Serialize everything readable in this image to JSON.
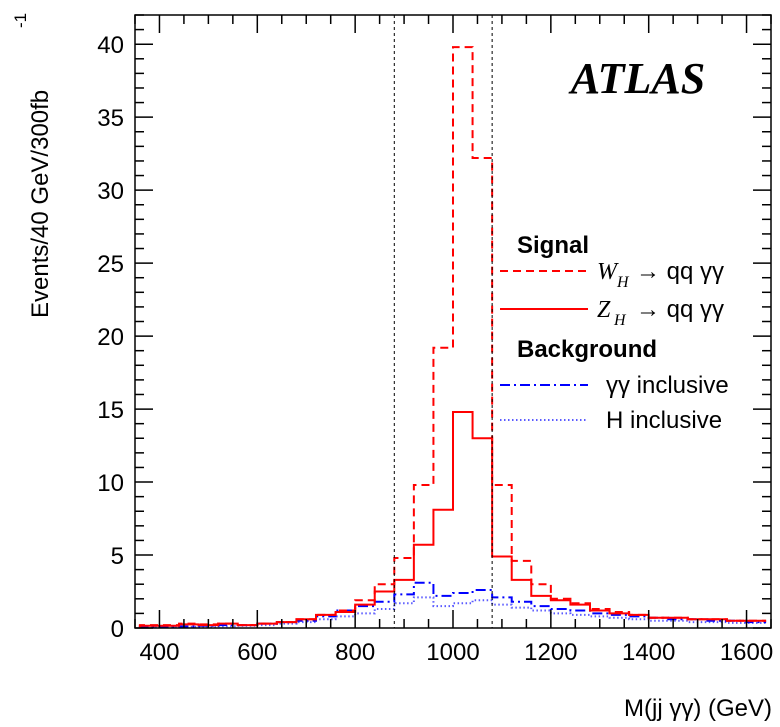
{
  "chart_data": {
    "type": "histogram",
    "experiment_label": "ATLAS",
    "xlabel": "M(jj γγ) (GeV)",
    "ylabel": "Events/40 GeV/300fb",
    "ylabel_superscript": "-1",
    "xlim": [
      350,
      1650
    ],
    "ylim": [
      0,
      42
    ],
    "xticks": [
      400,
      600,
      800,
      1000,
      1200,
      1400,
      1600
    ],
    "yticks": [
      0,
      5,
      10,
      15,
      20,
      25,
      30,
      35,
      40
    ],
    "mass_window": [
      880,
      1080
    ],
    "bins": {
      "start": 360,
      "width": 40,
      "count": 32
    },
    "legend": {
      "signal_title": "Signal",
      "background_title": "Background",
      "items": [
        {
          "math": "W",
          "sub": "H",
          "label": "→ qq γγ"
        },
        {
          "math": "Z",
          "sub": "H",
          "label": "→ qq γγ"
        },
        {
          "math": "",
          "sub": "",
          "label": "γγ inclusive"
        },
        {
          "math": "",
          "sub": "",
          "label": "H inclusive"
        }
      ]
    },
    "series": [
      {
        "name": "W_H → qq γγ",
        "color": "#ff0000",
        "style": "dashed",
        "values": [
          0.2,
          0.2,
          0.3,
          0.25,
          0.3,
          0.2,
          0.3,
          0.4,
          0.6,
          0.9,
          1.2,
          1.9,
          3.0,
          4.8,
          9.8,
          19.2,
          39.8,
          32.2,
          9.8,
          4.6,
          3.0,
          2.0,
          1.7,
          1.3,
          1.1,
          0.9,
          0.7,
          0.7,
          0.6,
          0.6,
          0.5,
          0.5
        ]
      },
      {
        "name": "Z_H → qq γγ",
        "color": "#ff0000",
        "style": "solid",
        "values": [
          0.15,
          0.15,
          0.25,
          0.2,
          0.3,
          0.2,
          0.3,
          0.4,
          0.6,
          0.9,
          1.1,
          1.6,
          2.5,
          3.3,
          5.7,
          8.1,
          14.8,
          13.0,
          4.9,
          3.3,
          2.2,
          1.9,
          1.6,
          1.2,
          1.0,
          0.9,
          0.7,
          0.7,
          0.6,
          0.6,
          0.5,
          0.5
        ]
      },
      {
        "name": "γγ inclusive",
        "color": "#0000ff",
        "style": "dashdot",
        "values": [
          0.1,
          0.1,
          0.1,
          0.15,
          0.2,
          0.2,
          0.3,
          0.4,
          0.5,
          0.8,
          1.2,
          1.5,
          1.8,
          2.3,
          3.1,
          2.2,
          2.4,
          2.6,
          2.1,
          1.8,
          1.5,
          1.3,
          1.2,
          1.0,
          0.9,
          0.8,
          0.7,
          0.6,
          0.6,
          0.5,
          0.5,
          0.4
        ]
      },
      {
        "name": "H inclusive",
        "color": "#5a5aff",
        "style": "dotted",
        "values": [
          0.05,
          0.05,
          0.08,
          0.1,
          0.12,
          0.15,
          0.2,
          0.3,
          0.4,
          0.6,
          0.8,
          1.0,
          1.3,
          1.7,
          2.1,
          1.5,
          1.7,
          1.9,
          1.6,
          1.4,
          1.2,
          1.0,
          0.9,
          0.8,
          0.7,
          0.6,
          0.5,
          0.5,
          0.4,
          0.4,
          0.35,
          0.35
        ]
      }
    ]
  }
}
